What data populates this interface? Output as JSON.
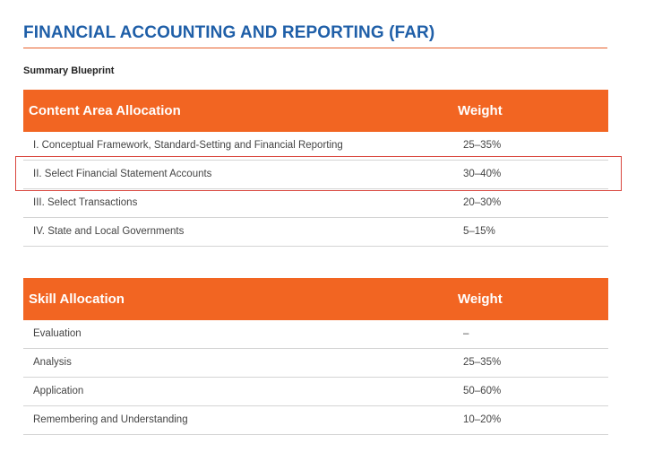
{
  "title": "FINANCIAL ACCOUNTING AND REPORTING (FAR)",
  "subtitle": "Summary Blueprint",
  "content_table": {
    "header": {
      "col1": "Content Area Allocation",
      "col2": "Weight"
    },
    "rows": [
      {
        "area": "I. Conceptual Framework, Standard-Setting and Financial Reporting",
        "weight": "25–35%"
      },
      {
        "area": "II. Select Financial Statement Accounts",
        "weight": "30–40%"
      },
      {
        "area": "III. Select Transactions",
        "weight": "20–30%"
      },
      {
        "area": "IV. State and Local Governments",
        "weight": "5–15%"
      }
    ]
  },
  "skill_table": {
    "header": {
      "col1": "Skill Allocation",
      "col2": "Weight"
    },
    "rows": [
      {
        "skill": "Evaluation",
        "weight": "–"
      },
      {
        "skill": "Analysis",
        "weight": "25–35%"
      },
      {
        "skill": "Application",
        "weight": "50–60%"
      },
      {
        "skill": "Remembering and Understanding",
        "weight": "10–20%"
      }
    ]
  },
  "colors": {
    "title": "#1f5fa8",
    "header_bg": "#f26522",
    "highlight_border": "#d9473f"
  }
}
